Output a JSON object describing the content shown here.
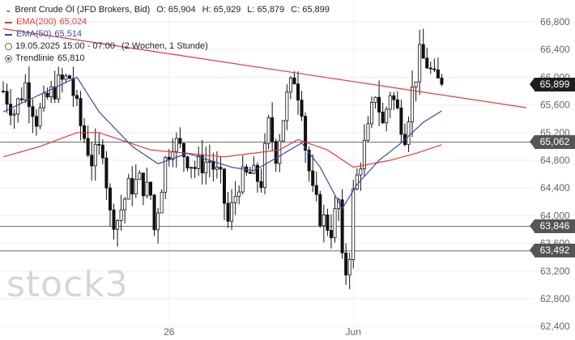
{
  "legend": {
    "instrument": "Brent Crude Öl (JFD Brokers, Bid)",
    "ohlc": {
      "o": "O: 65,904",
      "h": "H: 65,929",
      "l": "L: 65,879",
      "c": "C: 65,899"
    },
    "ema200": {
      "label": "EMA(200)",
      "value": "65,024",
      "color": "#e53935"
    },
    "ema50": {
      "label": "EMA(50)",
      "value": "65,514",
      "color": "#3949ab"
    },
    "period": {
      "range": "19.05.2025 15:00 - 07:00",
      "interval": "(2 Wochen, 1 Stunde)"
    },
    "trendline": {
      "label": "Trendlinie",
      "value": "65,810"
    }
  },
  "tags": {
    "last": "65,899",
    "level_upper": "65,062",
    "level_mid": "63,846",
    "level_low": "63,492"
  },
  "watermark": "stock3",
  "chart_data": {
    "type": "candlestick",
    "y_ticks": [
      "66,800",
      "66,400",
      "66,000",
      "65,600",
      "65,200",
      "64,800",
      "64,400",
      "64,000",
      "63,600",
      "63,200",
      "62,800",
      "62,400"
    ],
    "ylim": [
      62.4,
      67.0
    ],
    "x_ticks": [
      {
        "label": "26",
        "index": 45
      },
      {
        "label": "Jun",
        "index": 95
      }
    ],
    "bar_count": 120,
    "horizontal_levels": [
      65.062,
      63.846,
      63.492
    ],
    "trendline": {
      "start": [
        0,
        66.7
      ],
      "end": [
        142,
        65.56
      ],
      "color": "#e53935"
    },
    "last_price": 65.899,
    "path_anchors": [
      [
        0,
        65.8
      ],
      [
        3,
        65.5
      ],
      [
        6,
        65.9
      ],
      [
        9,
        65.4
      ],
      [
        12,
        65.7
      ],
      [
        15,
        65.9
      ],
      [
        18,
        66.0
      ],
      [
        21,
        65.3
      ],
      [
        24,
        64.8
      ],
      [
        27,
        65.0
      ],
      [
        29,
        64.0
      ],
      [
        31,
        63.95
      ],
      [
        34,
        64.4
      ],
      [
        37,
        64.5
      ],
      [
        40,
        64.3
      ],
      [
        41,
        63.8
      ],
      [
        44,
        64.8
      ],
      [
        46,
        65.1
      ],
      [
        49,
        64.9
      ],
      [
        52,
        64.7
      ],
      [
        56,
        64.8
      ],
      [
        59,
        64.5
      ],
      [
        61,
        63.9
      ],
      [
        64,
        64.5
      ],
      [
        67,
        64.6
      ],
      [
        70,
        64.5
      ],
      [
        72,
        65.3
      ],
      [
        74,
        64.9
      ],
      [
        77,
        65.7
      ],
      [
        79,
        66.0
      ],
      [
        81,
        65.6
      ],
      [
        82,
        65.0
      ],
      [
        84,
        64.3
      ],
      [
        86,
        64.0
      ],
      [
        89,
        63.8
      ],
      [
        91,
        64.2
      ],
      [
        92,
        63.3
      ],
      [
        93,
        63.2
      ],
      [
        94,
        63.5
      ],
      [
        95,
        64.3
      ],
      [
        97,
        64.8
      ],
      [
        99,
        65.2
      ],
      [
        101,
        65.8
      ],
      [
        103,
        65.3
      ],
      [
        105,
        65.8
      ],
      [
        107,
        65.5
      ],
      [
        109,
        65.2
      ],
      [
        111,
        65.8
      ],
      [
        113,
        66.3
      ],
      [
        115,
        66.2
      ],
      [
        117,
        65.95
      ],
      [
        119,
        65.899
      ]
    ],
    "ema200_anchors": [
      [
        0,
        64.85
      ],
      [
        10,
        65.0
      ],
      [
        20,
        65.2
      ],
      [
        26,
        65.2
      ],
      [
        40,
        64.95
      ],
      [
        60,
        64.85
      ],
      [
        75,
        64.95
      ],
      [
        80,
        65.1
      ],
      [
        88,
        64.95
      ],
      [
        95,
        64.7
      ],
      [
        105,
        64.8
      ],
      [
        112,
        64.9
      ],
      [
        119,
        65.024
      ]
    ],
    "ema50_anchors": [
      [
        0,
        65.5
      ],
      [
        8,
        65.7
      ],
      [
        20,
        66.0
      ],
      [
        26,
        65.5
      ],
      [
        35,
        65.0
      ],
      [
        42,
        64.75
      ],
      [
        50,
        64.9
      ],
      [
        62,
        64.7
      ],
      [
        68,
        64.65
      ],
      [
        73,
        64.8
      ],
      [
        81,
        65.05
      ],
      [
        86,
        64.7
      ],
      [
        92,
        64.1
      ],
      [
        96,
        64.45
      ],
      [
        102,
        64.8
      ],
      [
        108,
        65.05
      ],
      [
        114,
        65.35
      ],
      [
        119,
        65.514
      ]
    ]
  }
}
